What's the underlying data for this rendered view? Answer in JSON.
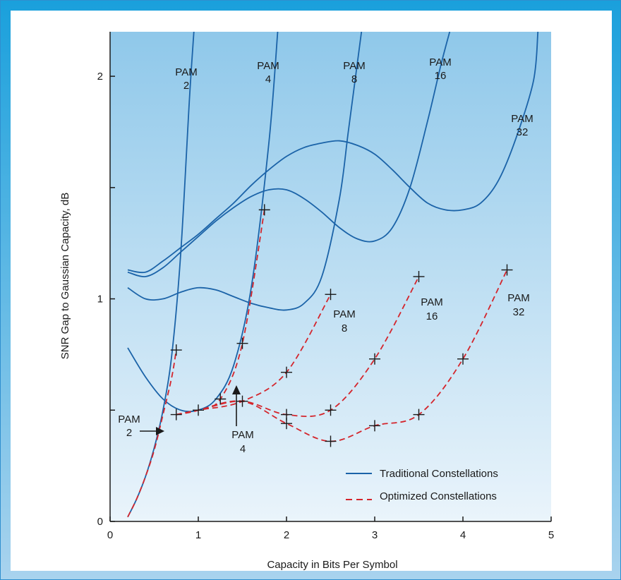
{
  "chart_data": {
    "type": "line",
    "xlabel": "Capacity in Bits Per Symbol",
    "ylabel": "SNR Gap to Gaussian Capacity, dB",
    "xlim": [
      0,
      5
    ],
    "ylim": [
      0,
      2.2
    ],
    "xticks": [
      "0",
      "1",
      "2",
      "3",
      "4",
      "5"
    ],
    "yticks": [
      "0",
      "1",
      "2"
    ],
    "legend": {
      "placement": "bottom-right",
      "traditional": "Traditional Constellations",
      "optimized": "Optimized Constellations"
    },
    "labels": {
      "trad_pam2": [
        "PAM",
        "2"
      ],
      "trad_pam4": [
        "PAM",
        "4"
      ],
      "trad_pam8": [
        "PAM",
        "8"
      ],
      "trad_pam16": [
        "PAM",
        "16"
      ],
      "trad_pam32": [
        "PAM",
        "32"
      ],
      "opt_pam2": [
        "PAM",
        "2"
      ],
      "opt_pam4": [
        "PAM",
        "4"
      ],
      "opt_pam8": [
        "PAM",
        "8"
      ],
      "opt_pam16": [
        "PAM",
        "16"
      ],
      "opt_pam32": [
        "PAM",
        "32"
      ]
    },
    "colors": {
      "traditional": "#1b63a8",
      "optimized": "#d4252c",
      "background_top": "#8fc8ea",
      "background_bottom": "#eaf4fb",
      "frame_top": "#1aa0dc",
      "frame_bottom": "#a9d3ee"
    },
    "traditional_series": [
      {
        "name": "PAM 2",
        "x": [
          0.2,
          0.3,
          0.4,
          0.5,
          0.6,
          0.7,
          0.8,
          0.9,
          0.95
        ],
        "y": [
          0.02,
          0.1,
          0.2,
          0.33,
          0.5,
          0.75,
          1.2,
          1.9,
          2.2
        ]
      },
      {
        "name": "PAM 4",
        "x": [
          0.2,
          0.4,
          0.6,
          0.8,
          1.0,
          1.2,
          1.4,
          1.6,
          1.8,
          1.9
        ],
        "y": [
          0.78,
          0.65,
          0.55,
          0.5,
          0.5,
          0.55,
          0.7,
          1.05,
          1.7,
          2.2
        ]
      },
      {
        "name": "PAM 8",
        "x": [
          0.2,
          0.4,
          0.6,
          0.8,
          1.0,
          1.2,
          1.4,
          1.6,
          1.8,
          2.0,
          2.2,
          2.4,
          2.6,
          2.7,
          2.8,
          2.85
        ],
        "y": [
          1.05,
          1.0,
          1.0,
          1.03,
          1.05,
          1.04,
          1.01,
          0.98,
          0.96,
          0.95,
          0.98,
          1.1,
          1.45,
          1.75,
          2.05,
          2.2
        ]
      },
      {
        "name": "PAM 16",
        "x": [
          0.2,
          0.4,
          0.6,
          0.8,
          1.0,
          1.2,
          1.4,
          1.6,
          1.8,
          2.0,
          2.2,
          2.4,
          2.6,
          2.8,
          3.0,
          3.2,
          3.4,
          3.6,
          3.75,
          3.85
        ],
        "y": [
          1.12,
          1.1,
          1.14,
          1.21,
          1.28,
          1.35,
          1.41,
          1.46,
          1.49,
          1.49,
          1.45,
          1.39,
          1.32,
          1.27,
          1.26,
          1.32,
          1.5,
          1.8,
          2.05,
          2.2
        ]
      },
      {
        "name": "PAM 32",
        "x": [
          0.2,
          0.4,
          0.6,
          0.8,
          1.0,
          1.2,
          1.4,
          1.6,
          1.8,
          2.0,
          2.2,
          2.4,
          2.6,
          2.8,
          3.0,
          3.2,
          3.4,
          3.6,
          3.8,
          4.0,
          4.2,
          4.4,
          4.6,
          4.8,
          4.85
        ],
        "y": [
          1.13,
          1.12,
          1.17,
          1.23,
          1.29,
          1.36,
          1.43,
          1.51,
          1.58,
          1.64,
          1.68,
          1.7,
          1.71,
          1.69,
          1.65,
          1.58,
          1.5,
          1.43,
          1.4,
          1.4,
          1.43,
          1.53,
          1.72,
          1.98,
          2.2
        ]
      }
    ],
    "optimized_series": [
      {
        "name": "PAM 2",
        "x": [
          0.2,
          0.3,
          0.4,
          0.5,
          0.6,
          0.7,
          0.75
        ],
        "y": [
          0.02,
          0.1,
          0.2,
          0.32,
          0.48,
          0.65,
          0.77
        ]
      },
      {
        "name": "PAM 4",
        "x": [
          0.75,
          1.0,
          1.25,
          1.5,
          1.75
        ],
        "y": [
          0.48,
          0.5,
          0.55,
          0.8,
          1.4
        ]
      },
      {
        "name": "PAM 8",
        "x": [
          0.75,
          1.0,
          1.5,
          2.0,
          2.5
        ],
        "y": [
          0.48,
          0.5,
          0.54,
          0.67,
          1.02
        ]
      },
      {
        "name": "PAM 16",
        "x": [
          0.75,
          1.0,
          1.5,
          2.0,
          2.5,
          3.0,
          3.5
        ],
        "y": [
          0.48,
          0.5,
          0.54,
          0.48,
          0.5,
          0.73,
          1.1
        ]
      },
      {
        "name": "PAM 32",
        "x": [
          0.75,
          1.0,
          1.5,
          2.0,
          2.5,
          3.0,
          3.5,
          4.0,
          4.5
        ],
        "y": [
          0.48,
          0.5,
          0.54,
          0.44,
          0.36,
          0.43,
          0.48,
          0.73,
          1.13
        ]
      }
    ],
    "optimized_markers": [
      {
        "x": 0.75,
        "y": 0.77
      },
      {
        "x": 0.75,
        "y": 0.48
      },
      {
        "x": 1.0,
        "y": 0.5
      },
      {
        "x": 1.25,
        "y": 0.55
      },
      {
        "x": 1.5,
        "y": 0.54
      },
      {
        "x": 1.5,
        "y": 0.8
      },
      {
        "x": 1.75,
        "y": 1.4
      },
      {
        "x": 2.0,
        "y": 0.67
      },
      {
        "x": 2.0,
        "y": 0.48
      },
      {
        "x": 2.0,
        "y": 0.44
      },
      {
        "x": 2.5,
        "y": 1.02
      },
      {
        "x": 2.5,
        "y": 0.5
      },
      {
        "x": 2.5,
        "y": 0.36
      },
      {
        "x": 3.0,
        "y": 0.73
      },
      {
        "x": 3.0,
        "y": 0.43
      },
      {
        "x": 3.5,
        "y": 1.1
      },
      {
        "x": 3.5,
        "y": 0.48
      },
      {
        "x": 4.0,
        "y": 0.73
      },
      {
        "x": 4.5,
        "y": 1.13
      }
    ]
  }
}
